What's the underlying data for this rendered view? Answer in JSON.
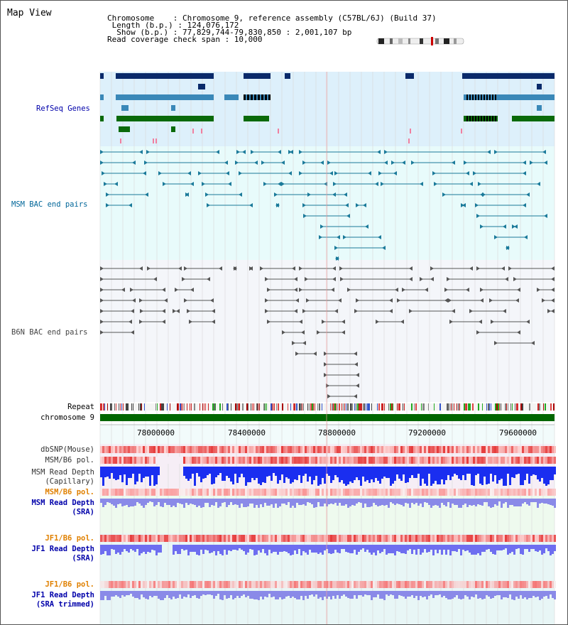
{
  "header": {
    "title": "Map View",
    "info_lines": [
      "Chromosome    : Chromosome 9, reference assembly (C57BL/6J) (Build 37)",
      " Length (b.p.) : 124,076,172",
      "  Show (b.p.) : 77,829,744-79,830,850 : 2,001,107 bp",
      "Read coverage check span : 10,000"
    ]
  },
  "tracks": {
    "refseq": {
      "label": "RefSeq Genes",
      "color": "#0000aa"
    },
    "msm_bac": {
      "label": "MSM BAC end pairs",
      "color": "#006699"
    },
    "b6n_bac": {
      "label": "B6N BAC end pairs",
      "color": "#444444"
    },
    "repeat": {
      "label": "Repeat"
    },
    "chromosome": {
      "label": "chromosome 9"
    },
    "dbsnp": {
      "label": "dbSNP(Mouse)"
    },
    "msm_b6_pol": {
      "label": "MSM/B6 pol."
    },
    "msm_depth_cap": {
      "label1": "MSM Read Depth",
      "label2": "(Capillary)"
    },
    "msm_b6_pol2": {
      "label": "MSM/B6 pol.",
      "color": "#e08000"
    },
    "msm_depth_sra": {
      "label1": "MSM Read Depth",
      "label2": "(SRA)",
      "color": "#0000aa"
    },
    "jf1_b6_pol": {
      "label": "JF1/B6 pol.",
      "color": "#e08000"
    },
    "jf1_depth_sra": {
      "label1": "JF1 Read Depth",
      "label2": "(SRA)",
      "color": "#0000aa"
    },
    "jf1_b6_pol2": {
      "label": "JF1/B6 pol.",
      "color": "#e08000"
    },
    "jf1_depth_trim": {
      "label1": "JF1 Read Depth",
      "label2": "(SRA trimmed)",
      "color": "#0000aa"
    }
  },
  "axis": {
    "ticks": [
      "78000000",
      "78400000",
      "78800000",
      "79200000",
      "79600000"
    ]
  }
}
